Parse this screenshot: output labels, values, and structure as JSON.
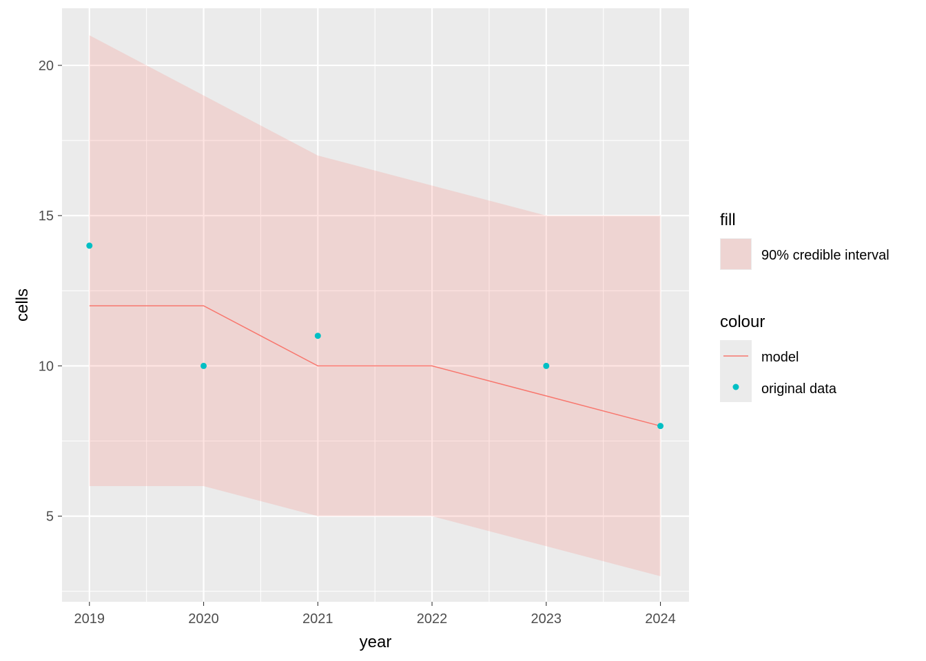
{
  "chart_data": {
    "type": "line",
    "xlabel": "year",
    "ylabel": "cells",
    "x": [
      2019,
      2020,
      2021,
      2022,
      2023,
      2024
    ],
    "xlim": [
      2018.76,
      2024.25
    ],
    "ylim": [
      2.15,
      21.9
    ],
    "x_ticks": [
      2019,
      2020,
      2021,
      2022,
      2023,
      2024
    ],
    "y_ticks": [
      5,
      10,
      15,
      20
    ],
    "grid": true,
    "legend_position": "right",
    "series": [
      {
        "name": "model",
        "kind": "line",
        "values": [
          12,
          12,
          10,
          10,
          9,
          8
        ],
        "color": "#F8766D"
      },
      {
        "name": "original data",
        "kind": "points",
        "values": [
          14,
          10,
          11,
          null,
          10,
          8
        ],
        "color": "#00BFC4"
      },
      {
        "name": "90% credible interval",
        "kind": "ribbon",
        "lower": [
          6,
          6,
          5,
          5,
          4,
          3
        ],
        "upper": [
          21,
          19,
          17,
          16,
          15,
          15
        ],
        "color": "#F8766D",
        "opacity": 0.2
      }
    ],
    "legend": {
      "fill_title": "fill",
      "fill_items": [
        "90% credible interval"
      ],
      "colour_title": "colour",
      "colour_items": [
        "model",
        "original data"
      ]
    }
  },
  "colors": {
    "panel_bg": "#EBEBEB",
    "grid": "#FFFFFF",
    "ribbon": "#F8766D",
    "line": "#F8766D",
    "points": "#00BFC4"
  }
}
